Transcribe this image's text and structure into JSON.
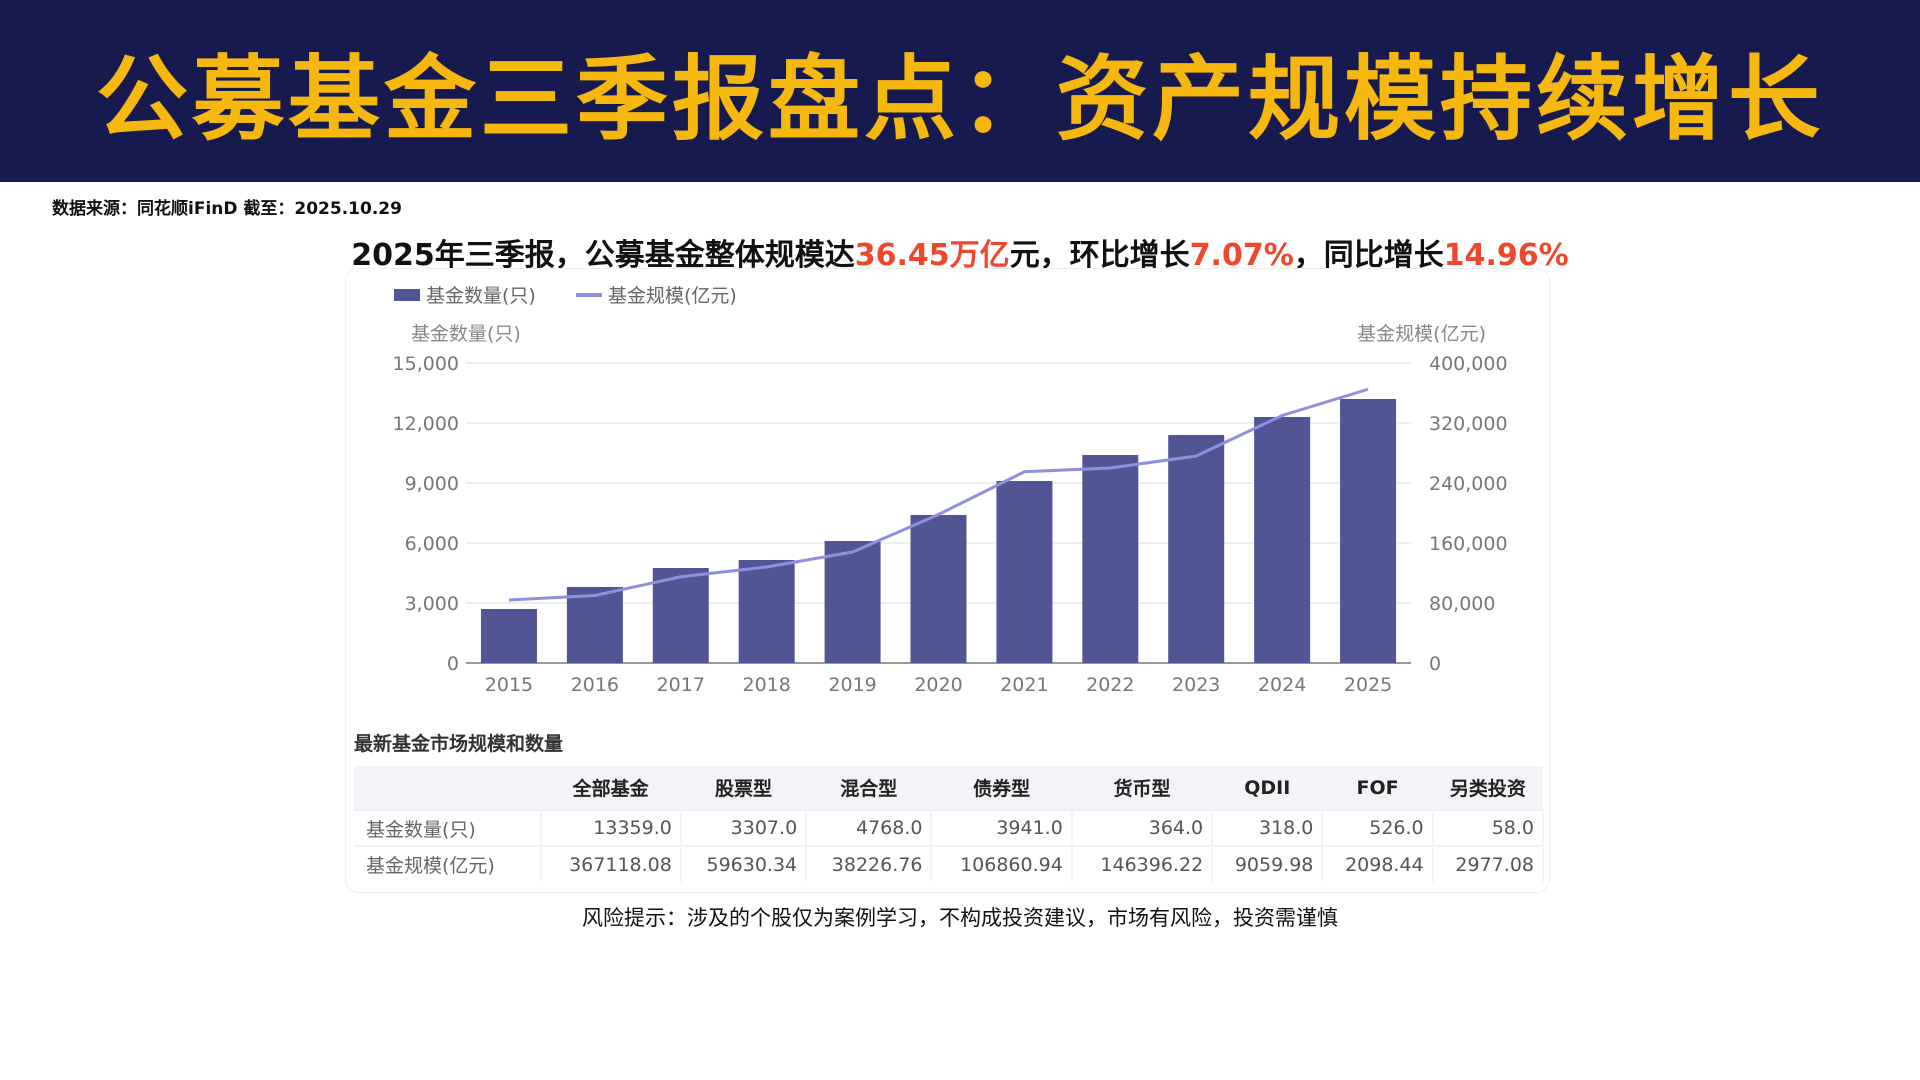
{
  "title": "公募基金三季报盘点：资产规模持续增长",
  "source": "数据来源：同花顺iFinD 截至：2025.10.29",
  "headline": {
    "p1": "2025年三季报，公募基金整体规模达",
    "v1": "36.45万亿",
    "p2": "元，环比增长",
    "v2": "7.07%",
    "p3": "，同比增长",
    "v3": "14.96%"
  },
  "colors": {
    "bar": "#525593",
    "line": "#8f8fe0",
    "title": "#f6b70f",
    "header_bg": "#161a4f",
    "highlight": "#f0462c"
  },
  "chart_data": {
    "type": "bar+line",
    "categories": [
      "2015",
      "2016",
      "2017",
      "2018",
      "2019",
      "2020",
      "2021",
      "2022",
      "2023",
      "2024",
      "2025"
    ],
    "series": [
      {
        "name": "基金数量(只)",
        "type": "bar",
        "axis": "left",
        "values": [
          2700,
          3800,
          4750,
          5150,
          6100,
          7400,
          9100,
          10400,
          11400,
          12300,
          13200
        ]
      },
      {
        "name": "基金规模(亿元)",
        "type": "line",
        "axis": "right",
        "values": [
          84000,
          90000,
          115000,
          128000,
          148000,
          198000,
          255000,
          260000,
          276000,
          330000,
          365000
        ]
      }
    ],
    "ylabel_left": "基金数量(只)",
    "ylabel_right": "基金规模(亿元)",
    "ylim_left": [
      0,
      15000
    ],
    "ylim_right": [
      0,
      400000
    ],
    "yticks_left": [
      "0",
      "3,000",
      "6,000",
      "9,000",
      "12,000",
      "15,000"
    ],
    "yticks_right": [
      "0",
      "80,000",
      "160,000",
      "240,000",
      "320,000",
      "400,000"
    ],
    "legend": "top-left",
    "grid": true
  },
  "table": {
    "title": "最新基金市场规模和数量",
    "headers": [
      "",
      "全部基金",
      "股票型",
      "混合型",
      "债券型",
      "货币型",
      "QDII",
      "FOF",
      "另类投资"
    ],
    "rows": [
      [
        "基金数量(只)",
        "13359.0",
        "3307.0",
        "4768.0",
        "3941.0",
        "364.0",
        "318.0",
        "526.0",
        "58.0"
      ],
      [
        "基金规模(亿元)",
        "367118.08",
        "59630.34",
        "38226.76",
        "106860.94",
        "146396.22",
        "9059.98",
        "2098.44",
        "2977.08"
      ]
    ]
  },
  "footer": "风险提示：涉及的个股仅为案例学习，不构成投资建议，市场有风险，投资需谨慎"
}
